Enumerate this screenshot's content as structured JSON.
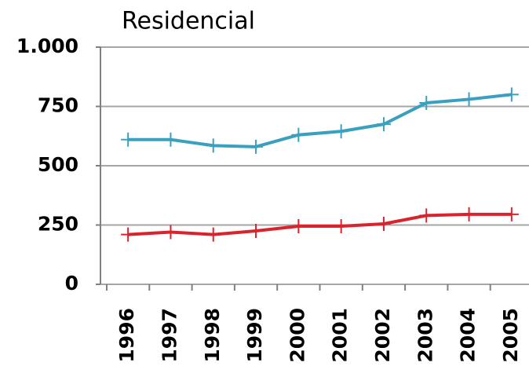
{
  "chart_data": {
    "type": "line",
    "title": "Residencial",
    "categories": [
      "1996",
      "1997",
      "1998",
      "1999",
      "2000",
      "2001",
      "2002",
      "2003",
      "2004",
      "2005"
    ],
    "series": [
      {
        "color": "#3aa0bf",
        "values": [
          610,
          610,
          585,
          580,
          630,
          645,
          675,
          765,
          780,
          800
        ]
      },
      {
        "color": "#d9232d",
        "values": [
          210,
          220,
          210,
          225,
          245,
          245,
          255,
          290,
          295,
          295
        ]
      }
    ],
    "ylim": [
      0,
      1000
    ],
    "yticks": [
      0,
      250,
      500,
      750,
      {
        "value": 1000,
        "label": "1.000"
      }
    ],
    "grid": true
  }
}
